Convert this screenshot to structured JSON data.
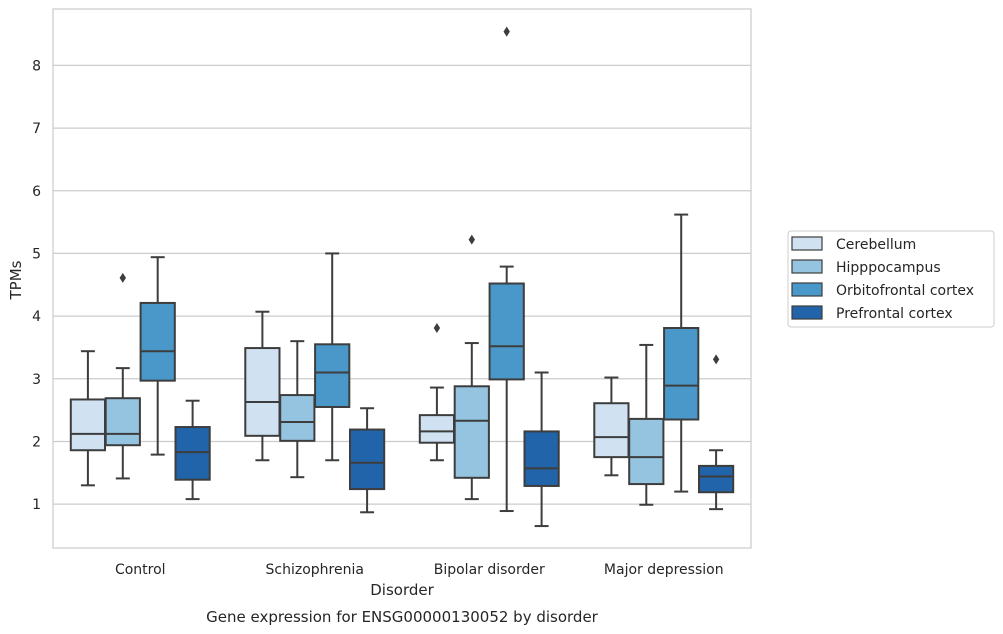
{
  "chart_data": {
    "type": "boxplot",
    "xlabel": "Disorder",
    "ylabel": "TPMs",
    "caption": "Gene expression for ENSG00000130052 by disorder",
    "categories": [
      "Control",
      "Schizophrenia",
      "Bipolar disorder",
      "Major depression"
    ],
    "ylim": [
      0.3,
      8.9
    ],
    "yticks": [
      "1",
      "2",
      "3",
      "4",
      "5",
      "6",
      "7",
      "8"
    ],
    "grid": "y",
    "legend_position": "right",
    "colors": [
      "#d0e1f2",
      "#94c4df",
      "#4a98c9",
      "#2264a9"
    ],
    "series": [
      {
        "name": "Cerebellum",
        "boxes": [
          {
            "whislo": 1.3,
            "q1": 1.86,
            "med": 2.12,
            "q3": 2.67,
            "whishi": 3.44,
            "fliers": []
          },
          {
            "whislo": 1.7,
            "q1": 2.09,
            "med": 2.63,
            "q3": 3.49,
            "whishi": 4.07,
            "fliers": []
          },
          {
            "whislo": 1.7,
            "q1": 1.98,
            "med": 2.16,
            "q3": 2.42,
            "whishi": 2.86,
            "fliers": [
              3.81
            ]
          },
          {
            "whislo": 1.46,
            "q1": 1.75,
            "med": 2.07,
            "q3": 2.61,
            "whishi": 3.02,
            "fliers": []
          }
        ]
      },
      {
        "name": "Hipppocampus",
        "boxes": [
          {
            "whislo": 1.41,
            "q1": 1.94,
            "med": 2.12,
            "q3": 2.69,
            "whishi": 3.17,
            "fliers": [
              4.61
            ]
          },
          {
            "whislo": 1.43,
            "q1": 2.01,
            "med": 2.31,
            "q3": 2.74,
            "whishi": 3.6,
            "fliers": []
          },
          {
            "whislo": 1.08,
            "q1": 1.42,
            "med": 2.33,
            "q3": 2.88,
            "whishi": 3.57,
            "fliers": [
              5.22
            ]
          },
          {
            "whislo": 0.99,
            "q1": 1.32,
            "med": 1.75,
            "q3": 2.36,
            "whishi": 3.54,
            "fliers": []
          }
        ]
      },
      {
        "name": "Orbitofrontal cortex",
        "boxes": [
          {
            "whislo": 1.79,
            "q1": 2.97,
            "med": 3.44,
            "q3": 4.21,
            "whishi": 4.94,
            "fliers": []
          },
          {
            "whislo": 1.7,
            "q1": 2.55,
            "med": 3.1,
            "q3": 3.55,
            "whishi": 5.0,
            "fliers": []
          },
          {
            "whislo": 0.89,
            "q1": 2.99,
            "med": 3.52,
            "q3": 4.52,
            "whishi": 4.79,
            "fliers": [
              8.54
            ]
          },
          {
            "whislo": 1.2,
            "q1": 2.35,
            "med": 2.89,
            "q3": 3.81,
            "whishi": 5.62,
            "fliers": []
          }
        ]
      },
      {
        "name": "Prefrontal cortex",
        "boxes": [
          {
            "whislo": 1.08,
            "q1": 1.39,
            "med": 1.83,
            "q3": 2.23,
            "whishi": 2.65,
            "fliers": []
          },
          {
            "whislo": 0.87,
            "q1": 1.24,
            "med": 1.66,
            "q3": 2.19,
            "whishi": 2.53,
            "fliers": []
          },
          {
            "whislo": 0.65,
            "q1": 1.29,
            "med": 1.57,
            "q3": 2.16,
            "whishi": 3.1,
            "fliers": []
          },
          {
            "whislo": 0.92,
            "q1": 1.19,
            "med": 1.44,
            "q3": 1.61,
            "whishi": 1.86,
            "fliers": [
              3.31
            ]
          }
        ]
      }
    ]
  }
}
